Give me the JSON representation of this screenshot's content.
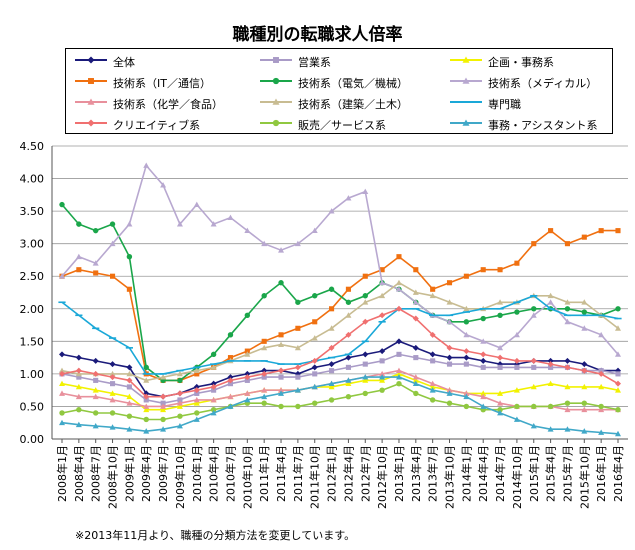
{
  "footnote": "※2013年11月より、職種の分類方法を変更しています。",
  "chart_data": {
    "type": "line",
    "title": "職種別の転職求人倍率",
    "xlabel": "",
    "ylabel": "",
    "ylim": [
      0,
      4.5
    ],
    "yticks": [
      "0.00",
      "0.50",
      "1.00",
      "1.50",
      "2.00",
      "2.50",
      "3.00",
      "3.50",
      "4.00",
      "4.50"
    ],
    "grid": true,
    "legend": "top",
    "x_tick_labels": [
      "2008年1月",
      "2008年4月",
      "2008年7月",
      "2008年10月",
      "2009年1月",
      "2009年4月",
      "2009年7月",
      "2009年10月",
      "2010年1月",
      "2010年4月",
      "2010年7月",
      "2010年10月",
      "2011年1月",
      "2011年4月",
      "2011年7月",
      "2011年10月",
      "2012年1月",
      "2012年4月",
      "2012年7月",
      "2012年10月",
      "2013年1月",
      "2013年4月",
      "2013年7月",
      "2013年10月",
      "2014年1月",
      "2014年4月",
      "2014年7月",
      "2014年10月",
      "2015年1月",
      "2015年4月",
      "2015年7月",
      "2015年10月",
      "2016年1月",
      "2016年4月"
    ],
    "series": [
      {
        "name": "全体",
        "color": "#1a1a7a",
        "marker": "diamond",
        "values": [
          1.3,
          1.25,
          1.2,
          1.15,
          1.1,
          0.7,
          0.65,
          0.7,
          0.8,
          0.85,
          0.95,
          1.0,
          1.05,
          1.05,
          1.0,
          1.1,
          1.15,
          1.25,
          1.3,
          1.35,
          1.5,
          1.4,
          1.3,
          1.25,
          1.25,
          1.2,
          1.15,
          1.15,
          1.2,
          1.2,
          1.2,
          1.15,
          1.05,
          1.05
        ]
      },
      {
        "name": "営業系",
        "color": "#a99bc7",
        "marker": "square",
        "values": [
          1.0,
          0.95,
          0.9,
          0.85,
          0.8,
          0.6,
          0.55,
          0.6,
          0.7,
          0.75,
          0.85,
          0.9,
          0.95,
          0.95,
          0.95,
          1.0,
          1.05,
          1.1,
          1.15,
          1.2,
          1.3,
          1.25,
          1.2,
          1.15,
          1.15,
          1.1,
          1.1,
          1.1,
          1.1,
          1.1,
          1.1,
          1.05,
          1.05,
          1.0
        ]
      },
      {
        "name": "企画・事務系",
        "color": "#f2f200",
        "marker": "triangle",
        "values": [
          0.85,
          0.8,
          0.75,
          0.7,
          0.65,
          0.45,
          0.45,
          0.5,
          0.55,
          0.6,
          0.65,
          0.7,
          0.75,
          0.75,
          0.75,
          0.8,
          0.8,
          0.85,
          0.9,
          0.9,
          1.0,
          0.9,
          0.8,
          0.75,
          0.7,
          0.7,
          0.7,
          0.75,
          0.8,
          0.85,
          0.8,
          0.8,
          0.8,
          0.75
        ]
      },
      {
        "name": "技術系（IT／通信）",
        "color": "#f07010",
        "marker": "square",
        "values": [
          2.5,
          2.6,
          2.55,
          2.5,
          2.3,
          1.0,
          0.9,
          0.9,
          1.0,
          1.1,
          1.25,
          1.35,
          1.5,
          1.6,
          1.7,
          1.8,
          2.0,
          2.3,
          2.5,
          2.6,
          2.8,
          2.6,
          2.3,
          2.4,
          2.5,
          2.6,
          2.6,
          2.7,
          3.0,
          3.2,
          3.0,
          3.1,
          3.2,
          3.2
        ]
      },
      {
        "name": "技術系（電気／機械）",
        "color": "#1aa64a",
        "marker": "circle",
        "values": [
          3.6,
          3.3,
          3.2,
          3.3,
          2.8,
          1.1,
          0.9,
          0.9,
          1.1,
          1.3,
          1.6,
          1.9,
          2.2,
          2.4,
          2.1,
          2.2,
          2.3,
          2.1,
          2.2,
          2.4,
          2.3,
          2.1,
          1.9,
          1.8,
          1.8,
          1.85,
          1.9,
          1.95,
          2.0,
          2.0,
          2.0,
          1.95,
          1.9,
          2.0
        ]
      },
      {
        "name": "技術系（メディカル）",
        "color": "#b8a8d0",
        "marker": "triangle",
        "values": [
          2.5,
          2.8,
          2.7,
          3.0,
          3.3,
          4.2,
          3.9,
          3.3,
          3.6,
          3.3,
          3.4,
          3.2,
          3.0,
          2.9,
          3.0,
          3.2,
          3.5,
          3.7,
          3.8,
          2.4,
          2.3,
          2.1,
          1.9,
          1.8,
          1.6,
          1.5,
          1.4,
          1.6,
          1.9,
          2.1,
          1.8,
          1.7,
          1.6,
          1.3
        ]
      },
      {
        "name": "技術系（化学／食品）",
        "color": "#e8909c",
        "marker": "triangle",
        "values": [
          0.7,
          0.65,
          0.65,
          0.6,
          0.55,
          0.5,
          0.5,
          0.55,
          0.6,
          0.6,
          0.65,
          0.7,
          0.75,
          0.75,
          0.75,
          0.8,
          0.85,
          0.9,
          0.95,
          1.0,
          1.05,
          0.95,
          0.85,
          0.75,
          0.7,
          0.65,
          0.55,
          0.5,
          0.5,
          0.5,
          0.45,
          0.45,
          0.45,
          0.45
        ]
      },
      {
        "name": "技術系（建築／土木）",
        "color": "#c8bc92",
        "marker": "triangle",
        "values": [
          1.05,
          1.0,
          1.0,
          1.0,
          1.0,
          0.9,
          0.95,
          1.0,
          1.05,
          1.1,
          1.2,
          1.3,
          1.4,
          1.45,
          1.4,
          1.55,
          1.7,
          1.9,
          2.1,
          2.2,
          2.4,
          2.25,
          2.2,
          2.1,
          2.0,
          2.0,
          2.1,
          2.1,
          2.2,
          2.2,
          2.1,
          2.1,
          1.9,
          1.7
        ]
      },
      {
        "name": "専門職",
        "color": "#1aa8d8",
        "marker": "dash",
        "values": [
          2.1,
          1.9,
          1.7,
          1.55,
          1.4,
          1.0,
          1.0,
          1.05,
          1.1,
          1.15,
          1.2,
          1.2,
          1.2,
          1.15,
          1.15,
          1.2,
          1.25,
          1.3,
          1.5,
          1.8,
          2.0,
          2.0,
          1.9,
          1.9,
          1.95,
          2.0,
          2.0,
          2.1,
          2.2,
          2.0,
          1.9,
          1.9,
          1.9,
          1.85
        ]
      },
      {
        "name": "クリエイティブ系",
        "color": "#f07070",
        "marker": "diamond",
        "values": [
          1.0,
          1.05,
          1.0,
          0.95,
          0.9,
          0.65,
          0.65,
          0.7,
          0.75,
          0.8,
          0.9,
          0.95,
          1.0,
          1.05,
          1.1,
          1.2,
          1.4,
          1.6,
          1.8,
          1.9,
          2.0,
          1.85,
          1.6,
          1.4,
          1.35,
          1.3,
          1.25,
          1.2,
          1.2,
          1.15,
          1.1,
          1.05,
          1.0,
          0.85
        ]
      },
      {
        "name": "販売／サービス系",
        "color": "#90c840",
        "marker": "circle",
        "values": [
          0.4,
          0.45,
          0.4,
          0.4,
          0.35,
          0.3,
          0.3,
          0.35,
          0.4,
          0.45,
          0.5,
          0.55,
          0.55,
          0.5,
          0.5,
          0.55,
          0.6,
          0.65,
          0.7,
          0.75,
          0.85,
          0.7,
          0.6,
          0.55,
          0.5,
          0.45,
          0.45,
          0.5,
          0.5,
          0.5,
          0.55,
          0.55,
          0.5,
          0.45
        ]
      },
      {
        "name": "事務・アシスタント系",
        "color": "#40a8c8",
        "marker": "triangle",
        "values": [
          0.25,
          0.22,
          0.2,
          0.18,
          0.15,
          0.12,
          0.15,
          0.2,
          0.3,
          0.4,
          0.5,
          0.6,
          0.65,
          0.7,
          0.75,
          0.8,
          0.85,
          0.9,
          0.95,
          0.95,
          0.95,
          0.85,
          0.75,
          0.7,
          0.65,
          0.5,
          0.4,
          0.3,
          0.2,
          0.15,
          0.15,
          0.12,
          0.1,
          0.08
        ]
      }
    ]
  }
}
